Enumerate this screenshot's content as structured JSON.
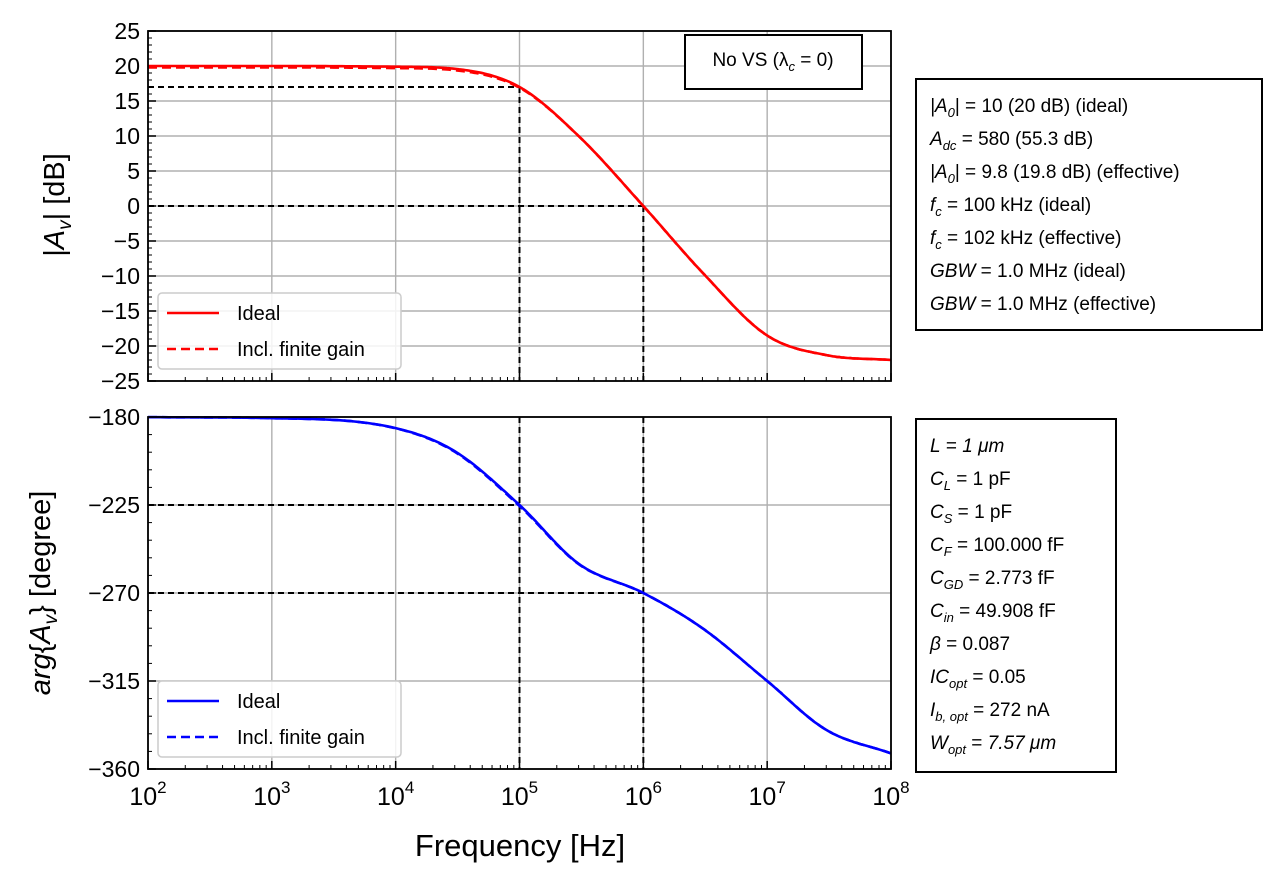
{
  "figure": {
    "xlabel": "Frequency [Hz]",
    "annotation": "No VS (λ",
    "annotation_sub": "c",
    "annotation_tail": " = 0)"
  },
  "legend_mag": {
    "ideal": "Ideal",
    "finite": "Incl. finite gain"
  },
  "legend_phase": {
    "ideal": "Ideal",
    "finite": "Incl. finite gain"
  },
  "info_top": {
    "r1": {
      "sym": "|A",
      "sub": "0",
      "tail": "| = ",
      "val": "10 (20 dB) (ideal)"
    },
    "r2": {
      "sym": "A",
      "sub": "dc",
      "tail": " = ",
      "val": "580 (55.3 dB)"
    },
    "r3": {
      "sym": "|A",
      "sub": "0",
      "tail": "| = ",
      "val": "9.8 (19.8 dB) (effective)"
    },
    "r4": {
      "sym": "f",
      "sub": "c",
      "tail": " = ",
      "val": "100 kHz (ideal)"
    },
    "r5": {
      "sym": "f",
      "sub": "c",
      "tail": " = ",
      "val": "102 kHz (effective)"
    },
    "r6": {
      "sym": "GBW",
      "sub": "",
      "tail": " = ",
      "val": "1.0 MHz (ideal)"
    },
    "r7": {
      "sym": "GBW",
      "sub": "",
      "tail": " = ",
      "val": "1.0 MHz (effective)"
    }
  },
  "info_bottom": {
    "r1": {
      "sym": "L",
      "sub": "",
      "tail": " = ",
      "val": "1 μm"
    },
    "r2": {
      "sym": "C",
      "sub": "L",
      "tail": " = ",
      "val": "1 pF"
    },
    "r3": {
      "sym": "C",
      "sub": "S",
      "tail": " = ",
      "val": "1 pF"
    },
    "r4": {
      "sym": "C",
      "sub": "F",
      "tail": " = ",
      "val": "100.000 fF"
    },
    "r5": {
      "sym": "C",
      "sub": "GD",
      "tail": " = ",
      "val": "2.773 fF"
    },
    "r6": {
      "sym": "C",
      "sub": "in",
      "tail": " = ",
      "val": "49.908 fF"
    },
    "r7": {
      "sym": "β",
      "sub": "",
      "tail": " = ",
      "val": "0.087"
    },
    "r8": {
      "sym": "IC",
      "sub": "opt",
      "tail": " = ",
      "val": "0.05"
    },
    "r9": {
      "sym": "I",
      "sub": "b, opt",
      "tail": " = ",
      "val": "272 nA"
    },
    "r10": {
      "sym": "W",
      "sub": "opt",
      "tail": " = ",
      "val": "7.57 μm"
    }
  },
  "colors": {
    "magnitude": "#ff0000",
    "phase": "#0000ff",
    "guide": "#000000",
    "grid": "#b0b0b0"
  },
  "chart_data": [
    {
      "type": "line",
      "ylabel": "|Av| [dB]",
      "x_scale": "log",
      "xlim": [
        100,
        100000000
      ],
      "ylim": [
        -25,
        25
      ],
      "yticks": [
        25,
        20,
        15,
        10,
        5,
        0,
        -5,
        -10,
        -15,
        -20,
        -25
      ],
      "x_tick_labels": [
        "10^2",
        "10^3",
        "10^4",
        "10^5",
        "10^6",
        "10^7",
        "10^8"
      ],
      "grid": true,
      "legend_position": "lower-left",
      "series": [
        {
          "name": "Ideal",
          "style": "solid",
          "color": "#ff0000",
          "x": [
            100,
            1000,
            10000,
            30000,
            100000,
            300000,
            1000000,
            3000000,
            10000000,
            30000000,
            100000000
          ],
          "y": [
            20.0,
            20.0,
            19.9,
            19.6,
            17.0,
            10.0,
            0.0,
            -9.5,
            -18.5,
            -21.3,
            -22.0
          ]
        },
        {
          "name": "Incl. finite gain",
          "style": "dashed",
          "color": "#ff0000",
          "x": [
            100,
            1000,
            10000,
            30000,
            100000,
            300000,
            1000000,
            3000000,
            10000000,
            30000000,
            100000000
          ],
          "y": [
            19.8,
            19.8,
            19.7,
            19.4,
            16.9,
            10.0,
            0.0,
            -9.5,
            -18.5,
            -21.3,
            -22.0
          ]
        }
      ],
      "guides": [
        {
          "x": 100000,
          "y": 17.0
        },
        {
          "x": 1000000,
          "y": 0.0
        }
      ]
    },
    {
      "type": "line",
      "ylabel": "arg{Av} [degree]",
      "x_scale": "log",
      "xlim": [
        100,
        100000000
      ],
      "ylim": [
        -360,
        -180
      ],
      "yticks": [
        -180,
        -225,
        -270,
        -315,
        -360
      ],
      "x_tick_labels": [
        "10^2",
        "10^3",
        "10^4",
        "10^5",
        "10^6",
        "10^7",
        "10^8"
      ],
      "grid": true,
      "legend_position": "lower-left",
      "series": [
        {
          "name": "Ideal",
          "style": "solid",
          "color": "#0000ff",
          "x": [
            100,
            1000,
            10000,
            30000,
            100000,
            300000,
            1000000,
            3000000,
            10000000,
            30000000,
            100000000
          ],
          "y": [
            -180.1,
            -180.6,
            -185.7,
            -197.5,
            -225.0,
            -255.0,
            -270.0,
            -288.0,
            -315.0,
            -340.0,
            -352.0
          ]
        },
        {
          "name": "Incl. finite gain",
          "style": "dashed",
          "color": "#0000ff",
          "x": [
            100,
            1000,
            10000,
            30000,
            100000,
            300000,
            1000000,
            3000000,
            10000000,
            30000000,
            100000000
          ],
          "y": [
            -180.1,
            -180.6,
            -185.8,
            -197.8,
            -225.5,
            -255.2,
            -270.0,
            -288.0,
            -315.0,
            -340.0,
            -352.0
          ]
        }
      ],
      "guides": [
        {
          "x": 100000,
          "y": -225.0
        },
        {
          "x": 1000000,
          "y": -270.0
        }
      ]
    }
  ]
}
